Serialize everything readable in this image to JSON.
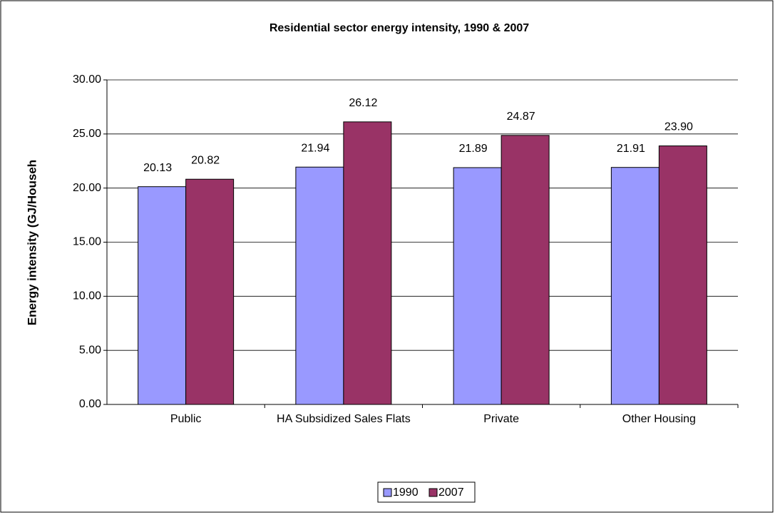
{
  "chart_data": {
    "type": "bar",
    "title": "Residential sector energy intensity, 1990 & 2007",
    "y_label": "Energy intensity (GJ/Househ",
    "categories": [
      "Public",
      "HA Subsidized Sales Flats",
      "Private",
      "Other Housing"
    ],
    "series": [
      {
        "name": "1990",
        "color": "#9999ff",
        "values": [
          20.13,
          21.94,
          21.89,
          21.91
        ],
        "value_labels": [
          "20.13",
          "21.94",
          "21.89",
          "21.91"
        ]
      },
      {
        "name": "2007",
        "color": "#993366",
        "values": [
          20.82,
          26.12,
          24.87,
          23.9
        ],
        "value_labels": [
          "20.82",
          "26.12",
          "24.87",
          "23.90"
        ]
      }
    ],
    "ylim": [
      0,
      30
    ],
    "yticks": [
      {
        "value": 0,
        "label": "0.00"
      },
      {
        "value": 5,
        "label": "5.00"
      },
      {
        "value": 10,
        "label": "10.00"
      },
      {
        "value": 15,
        "label": "15.00"
      },
      {
        "value": 20,
        "label": "20.00"
      },
      {
        "value": 25,
        "label": "25.00"
      },
      {
        "value": 30,
        "label": "30.00"
      }
    ],
    "grid": true,
    "legend": "bottom"
  }
}
